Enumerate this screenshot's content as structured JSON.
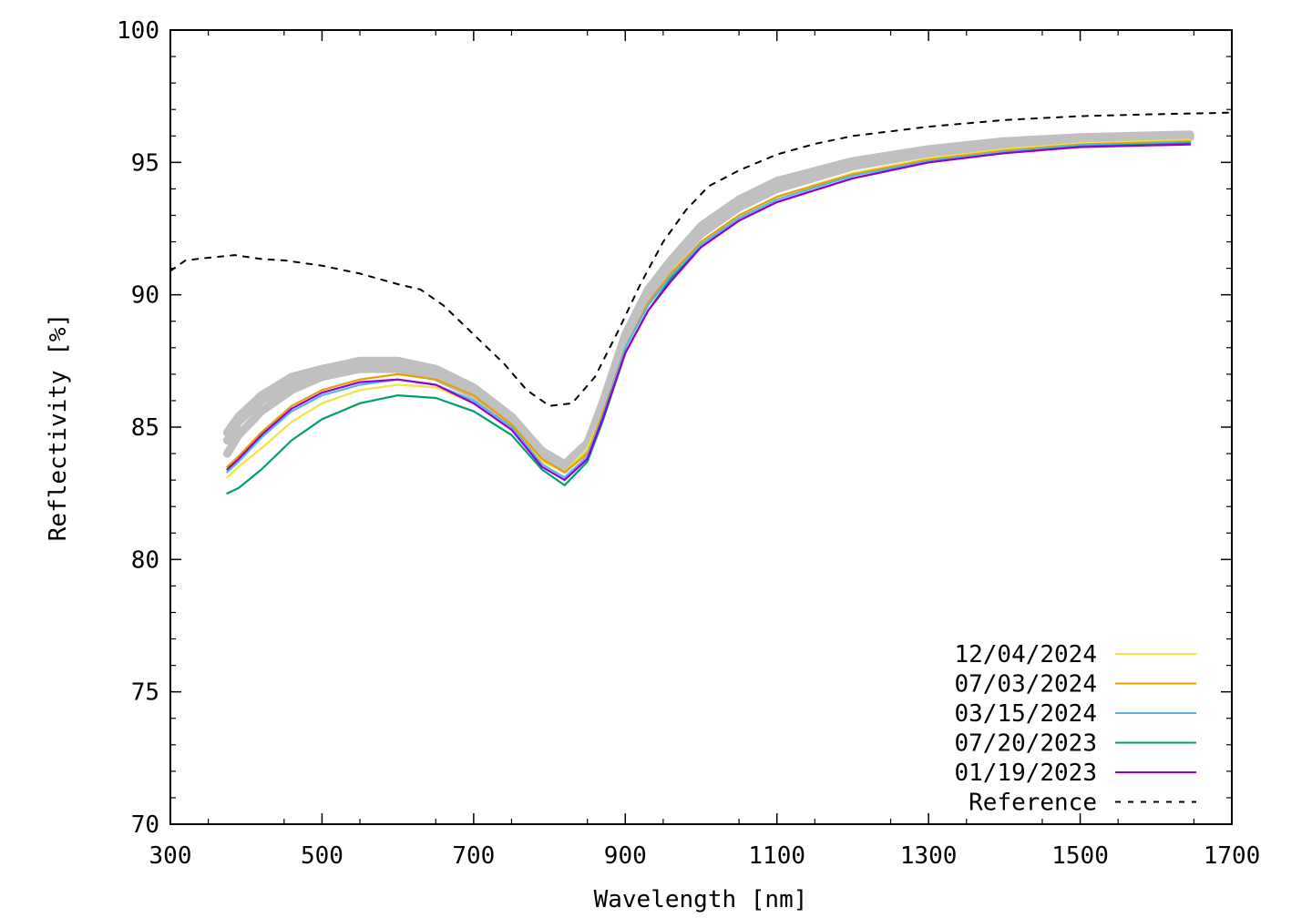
{
  "chart_data": {
    "type": "line",
    "title": "",
    "xlabel": "Wavelength [nm]",
    "ylabel": "Reflectivity [%]",
    "xlim": [
      300,
      1700
    ],
    "ylim": [
      70,
      100
    ],
    "x_ticks": [
      300,
      500,
      700,
      900,
      1100,
      1300,
      1500,
      1700
    ],
    "y_ticks": [
      70,
      75,
      80,
      85,
      90,
      95,
      100
    ],
    "grid": false,
    "legend": {
      "placement": "bottom-right"
    },
    "series": [
      {
        "name": "12/04/2024",
        "color": "#f0e442",
        "dash": false,
        "points": [
          [
            375,
            83.1
          ],
          [
            390,
            83.5
          ],
          [
            420,
            84.2
          ],
          [
            460,
            85.2
          ],
          [
            500,
            85.9
          ],
          [
            550,
            86.4
          ],
          [
            600,
            86.6
          ],
          [
            650,
            86.5
          ],
          [
            700,
            85.9
          ],
          [
            750,
            84.9
          ],
          [
            790,
            83.7
          ],
          [
            820,
            83.3
          ],
          [
            850,
            84.2
          ],
          [
            870,
            85.5
          ],
          [
            900,
            88.0
          ],
          [
            930,
            89.7
          ],
          [
            960,
            90.8
          ],
          [
            1000,
            92.0
          ],
          [
            1050,
            93.0
          ],
          [
            1100,
            93.7
          ],
          [
            1200,
            94.6
          ],
          [
            1300,
            95.15
          ],
          [
            1400,
            95.5
          ],
          [
            1500,
            95.72
          ],
          [
            1645,
            95.85
          ]
        ]
      },
      {
        "name": "07/03/2024",
        "color": "#e69f00",
        "dash": false,
        "points": [
          [
            375,
            83.5
          ],
          [
            390,
            83.9
          ],
          [
            420,
            84.8
          ],
          [
            460,
            85.8
          ],
          [
            500,
            86.4
          ],
          [
            550,
            86.8
          ],
          [
            600,
            87.0
          ],
          [
            650,
            86.8
          ],
          [
            700,
            86.2
          ],
          [
            750,
            85.1
          ],
          [
            790,
            83.8
          ],
          [
            820,
            83.3
          ],
          [
            850,
            84.0
          ],
          [
            870,
            85.5
          ],
          [
            900,
            88.0
          ],
          [
            930,
            89.7
          ],
          [
            960,
            90.8
          ],
          [
            1000,
            92.0
          ],
          [
            1050,
            93.0
          ],
          [
            1100,
            93.7
          ],
          [
            1200,
            94.55
          ],
          [
            1300,
            95.1
          ],
          [
            1400,
            95.45
          ],
          [
            1500,
            95.68
          ],
          [
            1645,
            95.8
          ]
        ]
      },
      {
        "name": "03/15/2024",
        "color": "#56b4e9",
        "dash": false,
        "points": [
          [
            375,
            83.3
          ],
          [
            390,
            83.7
          ],
          [
            420,
            84.6
          ],
          [
            460,
            85.6
          ],
          [
            500,
            86.2
          ],
          [
            550,
            86.6
          ],
          [
            600,
            86.8
          ],
          [
            650,
            86.6
          ],
          [
            700,
            86.0
          ],
          [
            750,
            85.0
          ],
          [
            790,
            83.6
          ],
          [
            820,
            83.1
          ],
          [
            850,
            83.9
          ],
          [
            870,
            85.4
          ],
          [
            900,
            88.0
          ],
          [
            930,
            89.6
          ],
          [
            960,
            90.7
          ],
          [
            1000,
            91.9
          ],
          [
            1050,
            92.9
          ],
          [
            1100,
            93.6
          ],
          [
            1200,
            94.5
          ],
          [
            1300,
            95.05
          ],
          [
            1400,
            95.4
          ],
          [
            1500,
            95.65
          ],
          [
            1645,
            95.75
          ]
        ]
      },
      {
        "name": "07/20/2023",
        "color": "#009e73",
        "dash": false,
        "points": [
          [
            375,
            82.5
          ],
          [
            390,
            82.7
          ],
          [
            420,
            83.4
          ],
          [
            460,
            84.5
          ],
          [
            500,
            85.3
          ],
          [
            550,
            85.9
          ],
          [
            600,
            86.2
          ],
          [
            650,
            86.1
          ],
          [
            700,
            85.6
          ],
          [
            750,
            84.7
          ],
          [
            790,
            83.4
          ],
          [
            820,
            82.8
          ],
          [
            850,
            83.7
          ],
          [
            870,
            85.2
          ],
          [
            900,
            87.8
          ],
          [
            930,
            89.4
          ],
          [
            960,
            90.6
          ],
          [
            1000,
            91.8
          ],
          [
            1050,
            92.8
          ],
          [
            1100,
            93.5
          ],
          [
            1200,
            94.4
          ],
          [
            1300,
            95.0
          ],
          [
            1400,
            95.35
          ],
          [
            1500,
            95.6
          ],
          [
            1645,
            95.72
          ]
        ]
      },
      {
        "name": "01/19/2023",
        "color": "#9400d3",
        "dash": false,
        "points": [
          [
            375,
            83.4
          ],
          [
            390,
            83.8
          ],
          [
            420,
            84.7
          ],
          [
            460,
            85.7
          ],
          [
            500,
            86.3
          ],
          [
            550,
            86.7
          ],
          [
            600,
            86.8
          ],
          [
            650,
            86.6
          ],
          [
            700,
            85.9
          ],
          [
            750,
            84.9
          ],
          [
            790,
            83.5
          ],
          [
            820,
            83.0
          ],
          [
            850,
            83.8
          ],
          [
            870,
            85.3
          ],
          [
            900,
            87.8
          ],
          [
            930,
            89.4
          ],
          [
            960,
            90.5
          ],
          [
            1000,
            91.8
          ],
          [
            1050,
            92.8
          ],
          [
            1100,
            93.5
          ],
          [
            1200,
            94.4
          ],
          [
            1300,
            95.0
          ],
          [
            1400,
            95.35
          ],
          [
            1500,
            95.58
          ],
          [
            1645,
            95.68
          ]
        ]
      },
      {
        "name": "Reference",
        "color": "#000000",
        "dash": true,
        "points": [
          [
            300,
            90.9
          ],
          [
            320,
            91.3
          ],
          [
            350,
            91.4
          ],
          [
            385,
            91.5
          ],
          [
            420,
            91.35
          ],
          [
            450,
            91.3
          ],
          [
            500,
            91.1
          ],
          [
            550,
            90.8
          ],
          [
            600,
            90.4
          ],
          [
            630,
            90.2
          ],
          [
            660,
            89.6
          ],
          [
            700,
            88.5
          ],
          [
            740,
            87.4
          ],
          [
            770,
            86.4
          ],
          [
            800,
            85.8
          ],
          [
            830,
            85.9
          ],
          [
            860,
            86.9
          ],
          [
            890,
            88.6
          ],
          [
            920,
            90.4
          ],
          [
            950,
            92.0
          ],
          [
            980,
            93.2
          ],
          [
            1010,
            94.1
          ],
          [
            1050,
            94.7
          ],
          [
            1100,
            95.3
          ],
          [
            1150,
            95.7
          ],
          [
            1200,
            96.0
          ],
          [
            1300,
            96.35
          ],
          [
            1400,
            96.6
          ],
          [
            1500,
            96.75
          ],
          [
            1600,
            96.82
          ],
          [
            1700,
            96.88
          ]
        ]
      },
      {
        "name": "",
        "color": "#c0c0c0",
        "dash": false,
        "background": true,
        "points": [
          [
            375,
            84.5
          ],
          [
            390,
            85.2
          ],
          [
            420,
            86.0
          ],
          [
            460,
            86.7
          ],
          [
            500,
            87.1
          ],
          [
            550,
            87.4
          ],
          [
            600,
            87.4
          ],
          [
            650,
            87.1
          ],
          [
            700,
            86.4
          ],
          [
            750,
            85.3
          ],
          [
            790,
            84.0
          ],
          [
            820,
            83.5
          ],
          [
            850,
            84.3
          ],
          [
            870,
            85.8
          ],
          [
            900,
            88.4
          ],
          [
            930,
            90.1
          ],
          [
            960,
            91.2
          ],
          [
            1000,
            92.5
          ],
          [
            1050,
            93.5
          ],
          [
            1100,
            94.2
          ],
          [
            1200,
            95.0
          ],
          [
            1300,
            95.45
          ],
          [
            1400,
            95.75
          ],
          [
            1500,
            95.92
          ],
          [
            1645,
            96.0
          ]
        ]
      },
      {
        "name": "",
        "color": "#c0c0c0",
        "dash": false,
        "background": true,
        "points": [
          [
            375,
            84.0
          ],
          [
            390,
            84.7
          ],
          [
            420,
            85.6
          ],
          [
            460,
            86.4
          ],
          [
            500,
            86.9
          ],
          [
            550,
            87.2
          ],
          [
            600,
            87.2
          ],
          [
            650,
            86.9
          ],
          [
            700,
            86.2
          ],
          [
            750,
            85.2
          ],
          [
            790,
            83.9
          ],
          [
            820,
            83.4
          ],
          [
            850,
            84.2
          ],
          [
            870,
            85.7
          ],
          [
            900,
            88.3
          ],
          [
            930,
            90.0
          ],
          [
            960,
            91.1
          ],
          [
            1000,
            92.3
          ],
          [
            1050,
            93.3
          ],
          [
            1100,
            94.0
          ],
          [
            1200,
            94.85
          ],
          [
            1300,
            95.35
          ],
          [
            1400,
            95.65
          ],
          [
            1500,
            95.85
          ],
          [
            1645,
            95.95
          ]
        ]
      },
      {
        "name": "",
        "color": "#c0c0c0",
        "dash": false,
        "background": true,
        "points": [
          [
            375,
            84.8
          ],
          [
            390,
            85.4
          ],
          [
            420,
            86.2
          ],
          [
            460,
            86.9
          ],
          [
            500,
            87.2
          ],
          [
            550,
            87.5
          ],
          [
            600,
            87.5
          ],
          [
            650,
            87.2
          ],
          [
            700,
            86.5
          ],
          [
            750,
            85.4
          ],
          [
            790,
            84.1
          ],
          [
            820,
            83.6
          ],
          [
            850,
            84.4
          ],
          [
            870,
            85.9
          ],
          [
            900,
            88.5
          ],
          [
            930,
            90.2
          ],
          [
            960,
            91.3
          ],
          [
            1000,
            92.6
          ],
          [
            1050,
            93.6
          ],
          [
            1100,
            94.3
          ],
          [
            1200,
            95.05
          ],
          [
            1300,
            95.5
          ],
          [
            1400,
            95.8
          ],
          [
            1500,
            95.95
          ],
          [
            1645,
            96.05
          ]
        ]
      }
    ]
  }
}
